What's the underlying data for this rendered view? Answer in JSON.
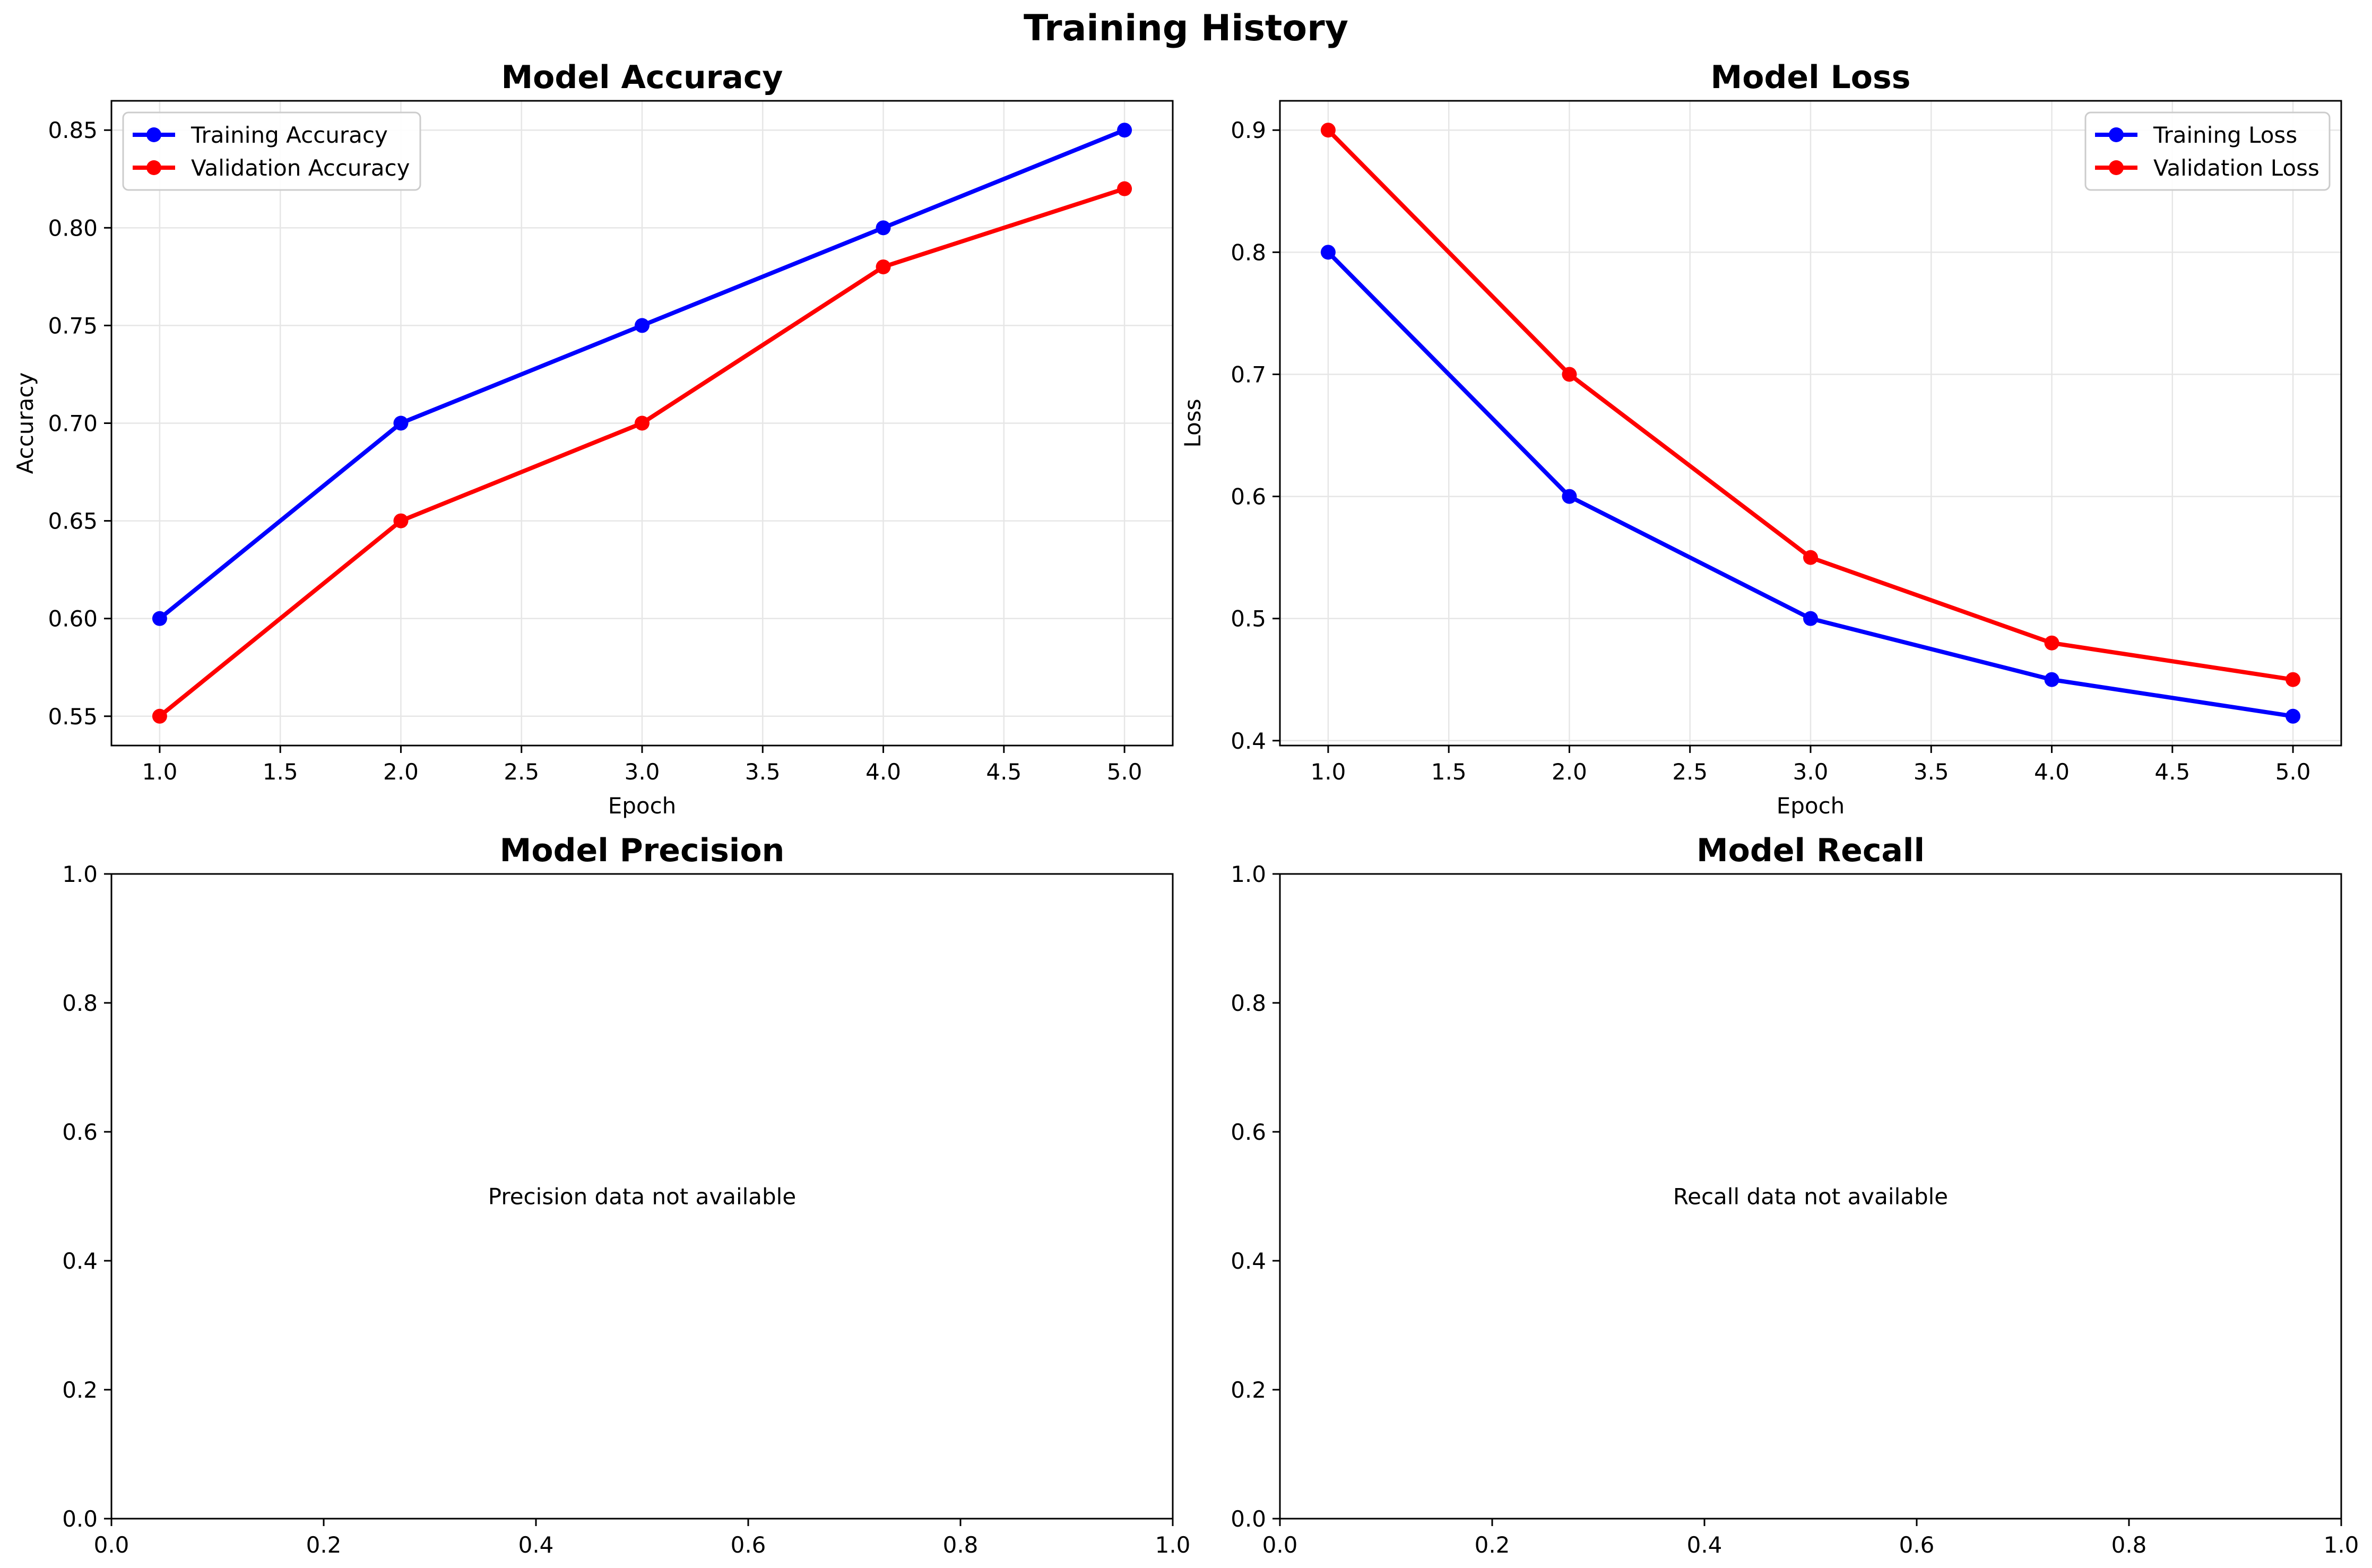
{
  "figure_title": "Training History",
  "colors": {
    "training": "#0000ff",
    "validation": "#ff0000",
    "grid": "#e6e6e6"
  },
  "chart_data": [
    {
      "type": "line",
      "title": "Model Accuracy",
      "xlabel": "Epoch",
      "ylabel": "Accuracy",
      "x": [
        1,
        2,
        3,
        4,
        5
      ],
      "xlim": [
        0.8,
        5.2
      ],
      "ylim": [
        0.535,
        0.865
      ],
      "xticks": [
        "1.0",
        "1.5",
        "2.0",
        "2.5",
        "3.0",
        "3.5",
        "4.0",
        "4.5",
        "5.0"
      ],
      "yticks": [
        "0.55",
        "0.60",
        "0.65",
        "0.70",
        "0.75",
        "0.80",
        "0.85"
      ],
      "grid": true,
      "legend": "top-left",
      "series": [
        {
          "name": "Training Accuracy",
          "color": "#0000ff",
          "values": [
            0.6,
            0.7,
            0.75,
            0.8,
            0.85
          ]
        },
        {
          "name": "Validation Accuracy",
          "color": "#ff0000",
          "values": [
            0.55,
            0.65,
            0.7,
            0.78,
            0.82
          ]
        }
      ]
    },
    {
      "type": "line",
      "title": "Model Loss",
      "xlabel": "Epoch",
      "ylabel": "Loss",
      "x": [
        1,
        2,
        3,
        4,
        5
      ],
      "xlim": [
        0.8,
        5.2
      ],
      "ylim": [
        0.396,
        0.924
      ],
      "xticks": [
        "1.0",
        "1.5",
        "2.0",
        "2.5",
        "3.0",
        "3.5",
        "4.0",
        "4.5",
        "5.0"
      ],
      "yticks": [
        "0.4",
        "0.5",
        "0.6",
        "0.7",
        "0.8",
        "0.9"
      ],
      "grid": true,
      "legend": "top-right",
      "series": [
        {
          "name": "Training Loss",
          "color": "#0000ff",
          "values": [
            0.8,
            0.6,
            0.5,
            0.45,
            0.42
          ]
        },
        {
          "name": "Validation Loss",
          "color": "#ff0000",
          "values": [
            0.9,
            0.7,
            0.55,
            0.48,
            0.45
          ]
        }
      ]
    },
    {
      "type": "line",
      "title": "Model Precision",
      "xlim": [
        0,
        1
      ],
      "ylim": [
        0,
        1
      ],
      "xticks": [
        "0.0",
        "0.2",
        "0.4",
        "0.6",
        "0.8",
        "1.0"
      ],
      "yticks": [
        "0.0",
        "0.2",
        "0.4",
        "0.6",
        "0.8",
        "1.0"
      ],
      "grid": false,
      "series": [],
      "annotation": "Precision data not available"
    },
    {
      "type": "line",
      "title": "Model Recall",
      "xlim": [
        0,
        1
      ],
      "ylim": [
        0,
        1
      ],
      "xticks": [
        "0.0",
        "0.2",
        "0.4",
        "0.6",
        "0.8",
        "1.0"
      ],
      "yticks": [
        "0.0",
        "0.2",
        "0.4",
        "0.6",
        "0.8",
        "1.0"
      ],
      "grid": false,
      "series": [],
      "annotation": "Recall data not available"
    }
  ]
}
